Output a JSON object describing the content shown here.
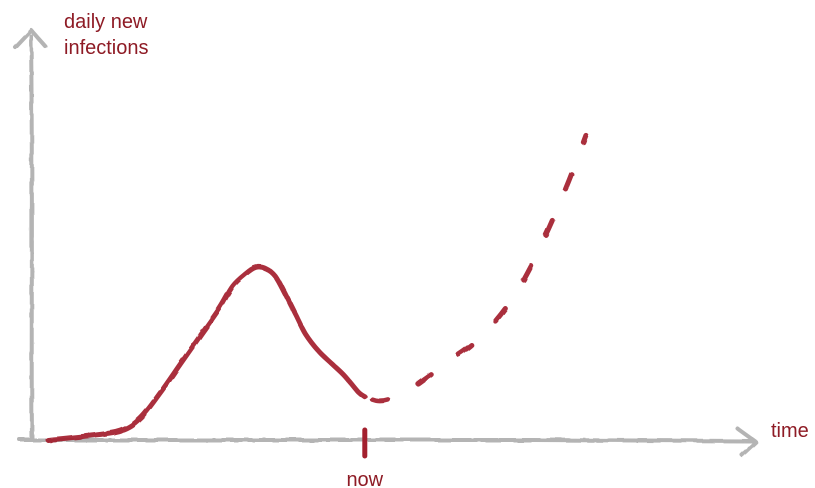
{
  "colors": {
    "axis": "#b4b4b4",
    "curve": "#a3202e",
    "text": "#8e1b25"
  },
  "chart_data": {
    "type": "line",
    "title": "",
    "ylabel_lines": [
      "daily new",
      "infections"
    ],
    "xlabel": "time",
    "marker_label": "now",
    "grid": false,
    "legend": "none",
    "xlim": [
      0,
      100
    ],
    "ylim": [
      0,
      100
    ],
    "marker_x": 48,
    "series": [
      {
        "style": "solid",
        "x": [
          0,
          6,
          11,
          14,
          17,
          20,
          23,
          26,
          28,
          30,
          31.5,
          33,
          34.5,
          36,
          37.5,
          39,
          41,
          43,
          45,
          47,
          48
        ],
        "y": [
          0,
          1.3,
          3,
          7,
          15,
          24,
          33,
          42,
          49,
          53,
          55,
          54.6,
          52,
          46.3,
          40,
          33.8,
          28.3,
          24.3,
          20.3,
          15.3,
          13.8
        ]
      },
      {
        "style": "dashed",
        "x": [
          48,
          50,
          52,
          55,
          58,
          61,
          64,
          67,
          70,
          73,
          76,
          79,
          81.5
        ],
        "y": [
          13.8,
          12.5,
          13.2,
          16.5,
          21,
          25.5,
          30,
          36,
          44,
          55,
          68,
          83,
          97
        ]
      }
    ]
  }
}
